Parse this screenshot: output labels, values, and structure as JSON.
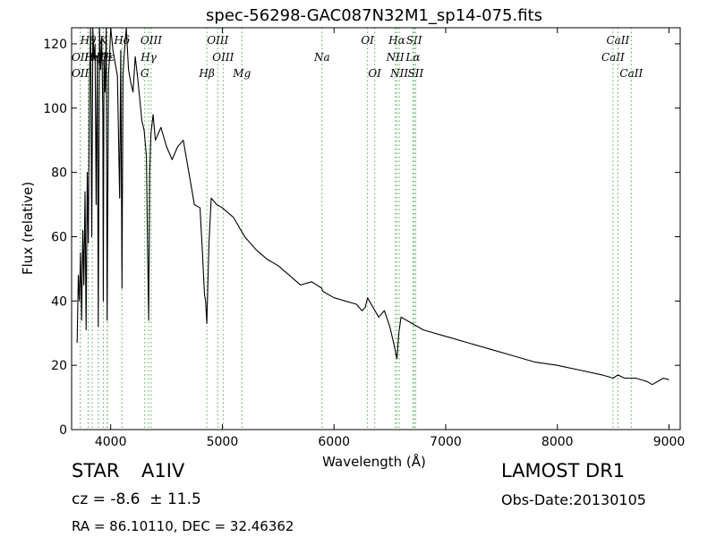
{
  "chart_data": {
    "type": "line",
    "title": "spec-56298-GAC087N32M1_sp14-075.fits",
    "xlabel": "Wavelength (Å)",
    "ylabel": "Flux (relative)",
    "xlim": [
      3650,
      9100
    ],
    "ylim": [
      0,
      125
    ],
    "x_ticks": [
      4000,
      5000,
      6000,
      7000,
      8000,
      9000
    ],
    "y_ticks": [
      0,
      20,
      40,
      60,
      80,
      100,
      120
    ],
    "grid": false,
    "legend": "none",
    "series": [
      {
        "color": "#000000",
        "x": [
          3700,
          3710,
          3720,
          3730,
          3740,
          3750,
          3760,
          3770,
          3780,
          3790,
          3800,
          3810,
          3820,
          3830,
          3835,
          3840,
          3850,
          3860,
          3870,
          3880,
          3889,
          3900,
          3910,
          3920,
          3930,
          3934,
          3940,
          3950,
          3960,
          3968,
          3980,
          3990,
          4000,
          4020,
          4040,
          4060,
          4080,
          4090,
          4101,
          4110,
          4120,
          4140,
          4160,
          4180,
          4200,
          4220,
          4240,
          4260,
          4280,
          4300,
          4320,
          4330,
          4340,
          4350,
          4360,
          4380,
          4400,
          4450,
          4500,
          4550,
          4600,
          4650,
          4700,
          4750,
          4800,
          4820,
          4840,
          4850,
          4861,
          4870,
          4880,
          4900,
          4950,
          5000,
          5100,
          5200,
          5300,
          5400,
          5500,
          5600,
          5700,
          5800,
          5890,
          5900,
          6000,
          6100,
          6200,
          6250,
          6280,
          6300,
          6400,
          6450,
          6500,
          6540,
          6563,
          6580,
          6600,
          6700,
          6800,
          7000,
          7200,
          7400,
          7600,
          7800,
          8000,
          8200,
          8400,
          8500,
          8542,
          8600,
          8662,
          8700,
          8800,
          8850,
          8900,
          8950,
          9000
        ],
        "y": [
          27,
          48,
          40,
          55,
          34,
          62,
          45,
          74,
          31,
          80,
          58,
          108,
          125,
          60,
          90,
          125,
          115,
          120,
          70,
          116,
          32,
          125,
          112,
          122,
          98,
          40,
          115,
          105,
          125,
          34,
          110,
          116,
          125,
          118,
          114,
          110,
          72,
          118,
          44,
          110,
          116,
          125,
          112,
          108,
          105,
          116,
          110,
          103,
          96,
          93,
          85,
          58,
          34,
          80,
          92,
          98,
          90,
          94,
          88,
          84,
          88,
          90,
          80,
          70,
          69,
          56,
          42,
          40,
          33,
          45,
          58,
          72,
          70,
          69,
          66,
          60,
          56,
          53,
          51,
          48,
          45,
          46,
          44,
          43,
          41,
          40,
          39,
          37,
          38,
          41,
          35,
          37,
          32,
          26,
          22,
          30,
          35,
          33,
          31,
          29,
          27,
          25,
          23,
          21,
          20,
          18.5,
          17,
          16,
          17,
          16,
          16,
          16,
          15,
          14,
          15,
          16,
          15.5
        ]
      }
    ],
    "spectral_lines": [
      {
        "label": "Hθ",
        "x": 3798,
        "row": 0
      },
      {
        "label": "OII",
        "x": 3727,
        "row": 1
      },
      {
        "label": "OII",
        "x": 3727,
        "row": 2
      },
      {
        "label": "Hη",
        "x": 3835,
        "row": 1
      },
      {
        "label": "Hζ",
        "x": 3889,
        "row": 1
      },
      {
        "label": "Hε",
        "x": 3970,
        "row": 1
      },
      {
        "label": "K",
        "x": 3934,
        "row": 0
      },
      {
        "label": "H",
        "x": 3968,
        "row": 1
      },
      {
        "label": "Hδ",
        "x": 4101,
        "row": 0
      },
      {
        "label": "OIII",
        "x": 4363,
        "row": 0
      },
      {
        "label": "Hγ",
        "x": 4340,
        "row": 1
      },
      {
        "label": "G",
        "x": 4305,
        "row": 2
      },
      {
        "label": "OIII",
        "x": 4959,
        "row": 0
      },
      {
        "label": "OIII",
        "x": 5007,
        "row": 1
      },
      {
        "label": "Hβ",
        "x": 4861,
        "row": 2
      },
      {
        "label": "Mg",
        "x": 5175,
        "row": 2
      },
      {
        "label": "Na",
        "x": 5893,
        "row": 1
      },
      {
        "label": "OI",
        "x": 6300,
        "row": 0
      },
      {
        "label": "OI",
        "x": 6364,
        "row": 2
      },
      {
        "label": "Hα",
        "x": 6563,
        "row": 0
      },
      {
        "label": "SII",
        "x": 6717,
        "row": 0
      },
      {
        "label": "NII",
        "x": 6548,
        "row": 1
      },
      {
        "label": "Lα",
        "x": 6707,
        "row": 1
      },
      {
        "label": "NII",
        "x": 6584,
        "row": 2
      },
      {
        "label": "SII",
        "x": 6731,
        "row": 2
      },
      {
        "label": "CaII",
        "x": 8498,
        "row": 1
      },
      {
        "label": "CaII",
        "x": 8542,
        "row": 0
      },
      {
        "label": "CaII",
        "x": 8662,
        "row": 2
      }
    ],
    "line_color": "#55aa55"
  },
  "info": {
    "object_class": "STAR",
    "subclass": "A1IV",
    "cz": "cz = -8.6  ± 11.5",
    "coords": "RA = 86.10110, DEC = 32.46362",
    "survey": "LAMOST DR1",
    "obs_date": "Obs-Date:20130105"
  }
}
